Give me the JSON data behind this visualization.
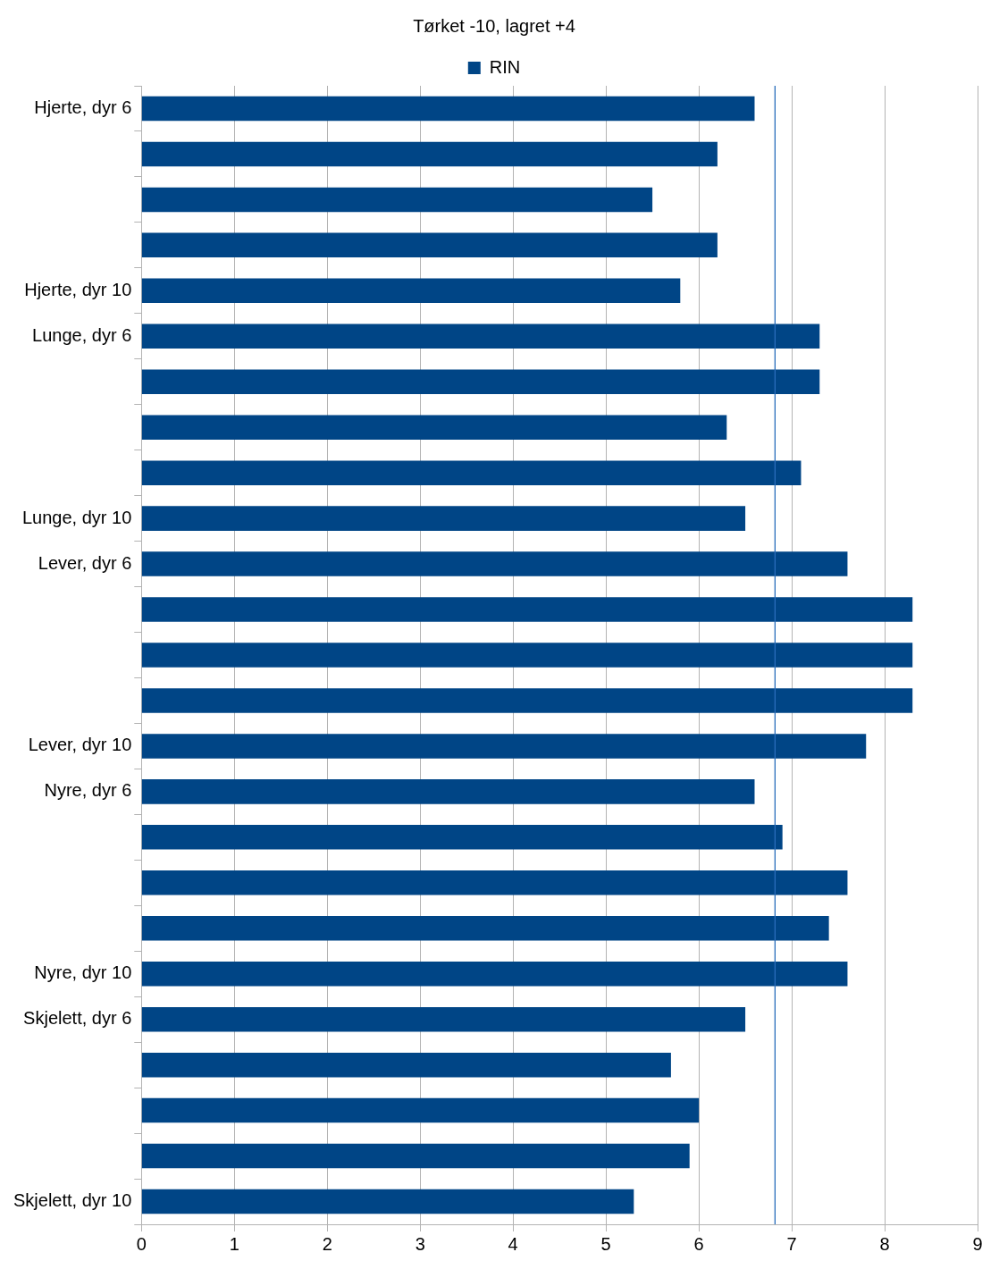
{
  "chart_data": {
    "type": "bar",
    "orientation": "horizontal",
    "title": "Tørket -10, lagret +4",
    "categories": [
      "Hjerte, dyr 6",
      null,
      null,
      null,
      "Hjerte, dyr 10",
      "Lunge, dyr 6",
      null,
      null,
      null,
      "Lunge, dyr 10",
      "Lever, dyr 6",
      null,
      null,
      null,
      "Lever, dyr 10",
      "Nyre, dyr 6",
      null,
      null,
      null,
      "Nyre, dyr 10",
      "Skjelett, dyr 6",
      null,
      null,
      null,
      "Skjelett, dyr 10"
    ],
    "series": [
      {
        "name": "RIN",
        "color": "#004586",
        "values": [
          6.6,
          6.2,
          5.5,
          6.2,
          5.8,
          7.3,
          7.3,
          6.3,
          7.1,
          6.5,
          7.6,
          8.3,
          8.3,
          8.3,
          7.8,
          6.6,
          6.9,
          7.6,
          7.4,
          7.6,
          6.5,
          5.7,
          6.0,
          5.9,
          5.3
        ]
      }
    ],
    "xlim": [
      0,
      9
    ],
    "xticks": [
      0,
      1,
      2,
      3,
      4,
      5,
      6,
      7,
      8,
      9
    ],
    "ref_lines": [
      {
        "axis": "x",
        "value": 6.82,
        "color": "#2a6ebb"
      }
    ],
    "grid": "x",
    "legend": "top"
  }
}
